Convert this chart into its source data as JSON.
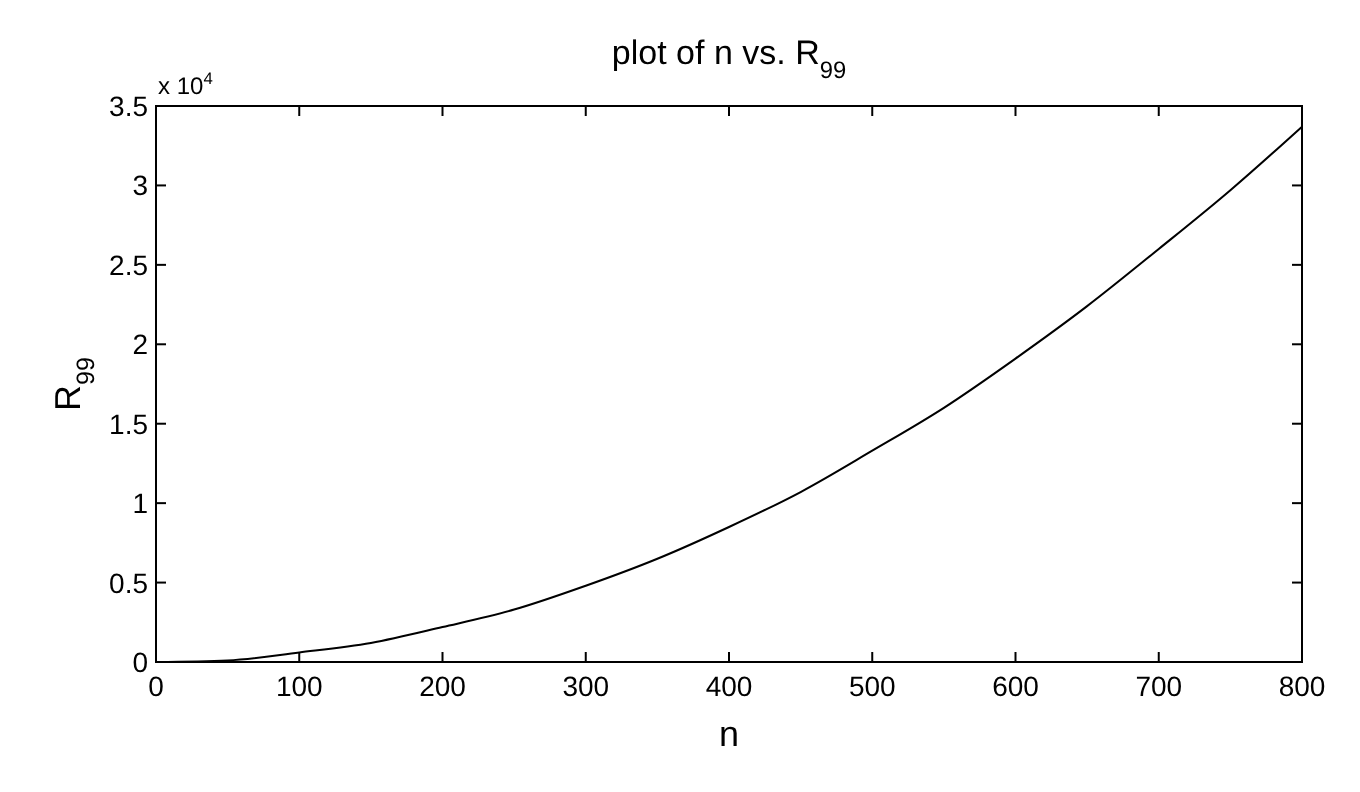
{
  "chart_data": {
    "type": "line",
    "title": "plot of n vs. R$_{99}$",
    "xlabel": "n",
    "ylabel": "R$_{99}$",
    "annotations": [
      "x 10$^{4}$"
    ],
    "x": [
      0,
      50,
      100,
      150,
      200,
      250,
      300,
      350,
      400,
      450,
      500,
      550,
      600,
      650,
      700,
      750,
      800
    ],
    "series": [
      {
        "color": "#000000",
        "values": [
          0,
          0.01,
          0.06,
          0.12,
          0.22,
          0.33,
          0.48,
          0.65,
          0.85,
          1.07,
          1.33,
          1.6,
          1.91,
          2.24,
          2.6,
          2.97,
          3.37
        ]
      }
    ],
    "xlim": [
      0,
      800
    ],
    "xticks": [
      0,
      100,
      200,
      300,
      400,
      500,
      600,
      700,
      800
    ],
    "ylim": [
      0,
      3.5
    ],
    "yticks": [
      0,
      0.5,
      1,
      1.5,
      2,
      2.5,
      3,
      3.5
    ],
    "grid": false,
    "marker": "none",
    "line_style": "solid"
  }
}
